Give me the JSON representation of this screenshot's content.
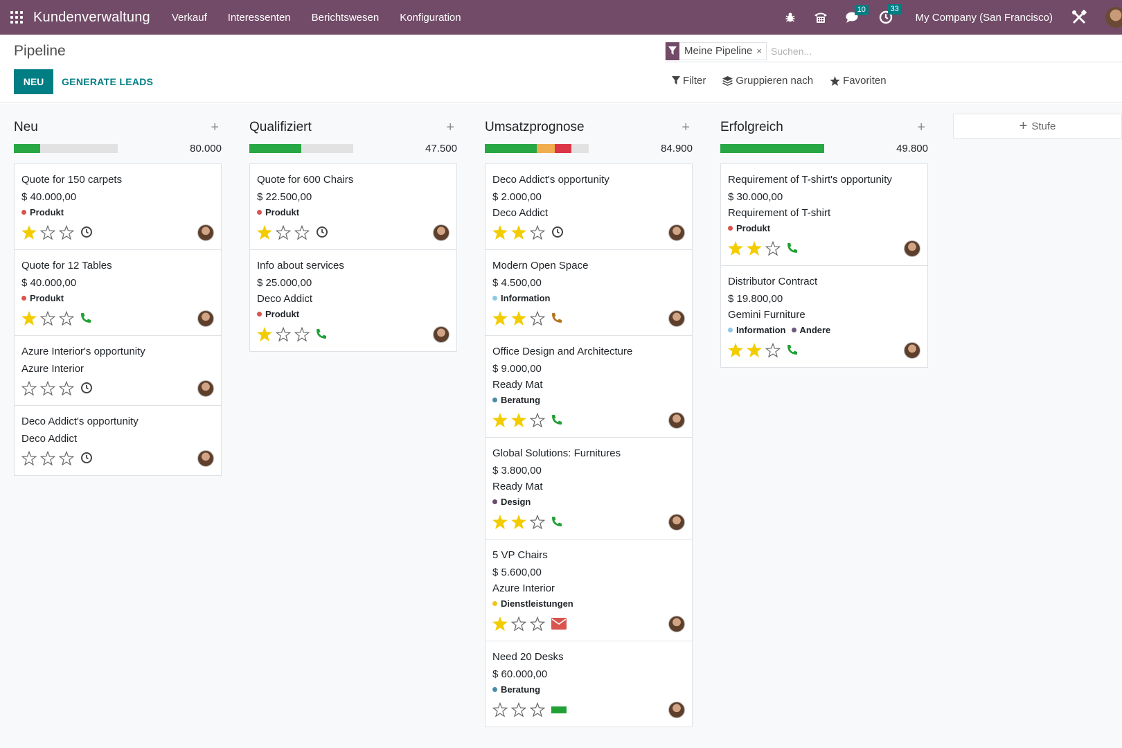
{
  "navbar": {
    "app_title": "Kundenverwaltung",
    "menu": [
      "Verkauf",
      "Interessenten",
      "Berichtswesen",
      "Konfiguration"
    ],
    "messages_count": "10",
    "activities_count": "33",
    "company": "My Company (San Francisco)",
    "colors": {
      "bg": "#714b67",
      "badge": "#017e84"
    }
  },
  "control": {
    "title": "Pipeline",
    "new_label": "NEU",
    "generate_label": "GENERATE LEADS",
    "facet_label": "Meine Pipeline",
    "facet_close": "×",
    "search_placeholder": "Suchen...",
    "filter_label": "Filter",
    "group_label": "Gruppieren nach",
    "fav_label": "Favoriten"
  },
  "kanban": {
    "add_stage_label": "Stufe",
    "columns": [
      {
        "title": "Neu",
        "total": "80.000",
        "progress": [
          {
            "color": "#28a745",
            "pct": 25
          }
        ],
        "cards": [
          {
            "title": "Quote for 150 carpets",
            "amount": "$ 40.000,00",
            "company": "",
            "tags": [
              {
                "label": "Produkt",
                "color": "#d9534f"
              }
            ],
            "stars": 1,
            "activity": "clock"
          },
          {
            "title": "Quote for 12 Tables",
            "amount": "$ 40.000,00",
            "company": "",
            "tags": [
              {
                "label": "Produkt",
                "color": "#d9534f"
              }
            ],
            "stars": 1,
            "activity": "phone"
          },
          {
            "title": "Azure Interior's opportunity",
            "amount": "",
            "company": "Azure Interior",
            "tags": [],
            "stars": 0,
            "activity": "clock"
          },
          {
            "title": "Deco Addict's opportunity",
            "amount": "",
            "company": "Deco Addict",
            "tags": [],
            "stars": 0,
            "activity": "clock"
          }
        ]
      },
      {
        "title": "Qualifiziert",
        "total": "47.500",
        "progress": [
          {
            "color": "#28a745",
            "pct": 50
          }
        ],
        "cards": [
          {
            "title": "Quote for 600 Chairs",
            "amount": "$ 22.500,00",
            "company": "",
            "tags": [
              {
                "label": "Produkt",
                "color": "#d9534f"
              }
            ],
            "stars": 1,
            "activity": "clock"
          },
          {
            "title": "Info about services",
            "amount": "$ 25.000,00",
            "company": "Deco Addict",
            "tags": [
              {
                "label": "Produkt",
                "color": "#d9534f"
              }
            ],
            "stars": 1,
            "activity": "phone"
          }
        ]
      },
      {
        "title": "Umsatzprognose",
        "total": "84.900",
        "progress": [
          {
            "color": "#28a745",
            "pct": 50
          },
          {
            "color": "#f0ad4e",
            "pct": 17
          },
          {
            "color": "#dc3545",
            "pct": 16
          }
        ],
        "cards": [
          {
            "title": "Deco Addict's opportunity",
            "amount": "$ 2.000,00",
            "company": "Deco Addict",
            "tags": [],
            "stars": 2,
            "activity": "clock"
          },
          {
            "title": "Modern Open Space",
            "amount": "$ 4.500,00",
            "company": "",
            "tags": [
              {
                "label": "Information",
                "color": "#8fc7e8"
              }
            ],
            "stars": 2,
            "activity": "phone-orange"
          },
          {
            "title": "Office Design and Architecture",
            "amount": "$ 9.000,00",
            "company": "Ready Mat",
            "tags": [
              {
                "label": "Beratung",
                "color": "#4a8aa8"
              }
            ],
            "stars": 2,
            "activity": "phone"
          },
          {
            "title": "Global Solutions: Furnitures",
            "amount": "$ 3.800,00",
            "company": "Ready Mat",
            "tags": [
              {
                "label": "Design",
                "color": "#6b4a6b"
              }
            ],
            "stars": 2,
            "activity": "phone"
          },
          {
            "title": "5 VP Chairs",
            "amount": "$ 5.600,00",
            "company": "Azure Interior",
            "tags": [
              {
                "label": "Dienstleistungen",
                "color": "#f0c419"
              }
            ],
            "stars": 1,
            "activity": "envelope"
          },
          {
            "title": "Need 20 Desks",
            "amount": "$ 60.000,00",
            "company": "",
            "tags": [
              {
                "label": "Beratung",
                "color": "#4a8aa8"
              }
            ],
            "stars": 0,
            "activity": "green-box"
          }
        ]
      },
      {
        "title": "Erfolgreich",
        "total": "49.800",
        "progress": [
          {
            "color": "#28a745",
            "pct": 100
          }
        ],
        "cards": [
          {
            "title": "Requirement of T-shirt's opportunity",
            "amount": "$ 30.000,00",
            "company": "Requirement of T-shirt",
            "tags": [
              {
                "label": "Produkt",
                "color": "#d9534f"
              }
            ],
            "stars": 2,
            "activity": "phone"
          },
          {
            "title": "Distributor Contract",
            "amount": "$ 19.800,00",
            "company": "Gemini Furniture",
            "tags": [
              {
                "label": "Information",
                "color": "#8fc7e8"
              },
              {
                "label": "Andere",
                "color": "#6a5a7a"
              }
            ],
            "stars": 2,
            "activity": "phone"
          }
        ]
      }
    ]
  }
}
